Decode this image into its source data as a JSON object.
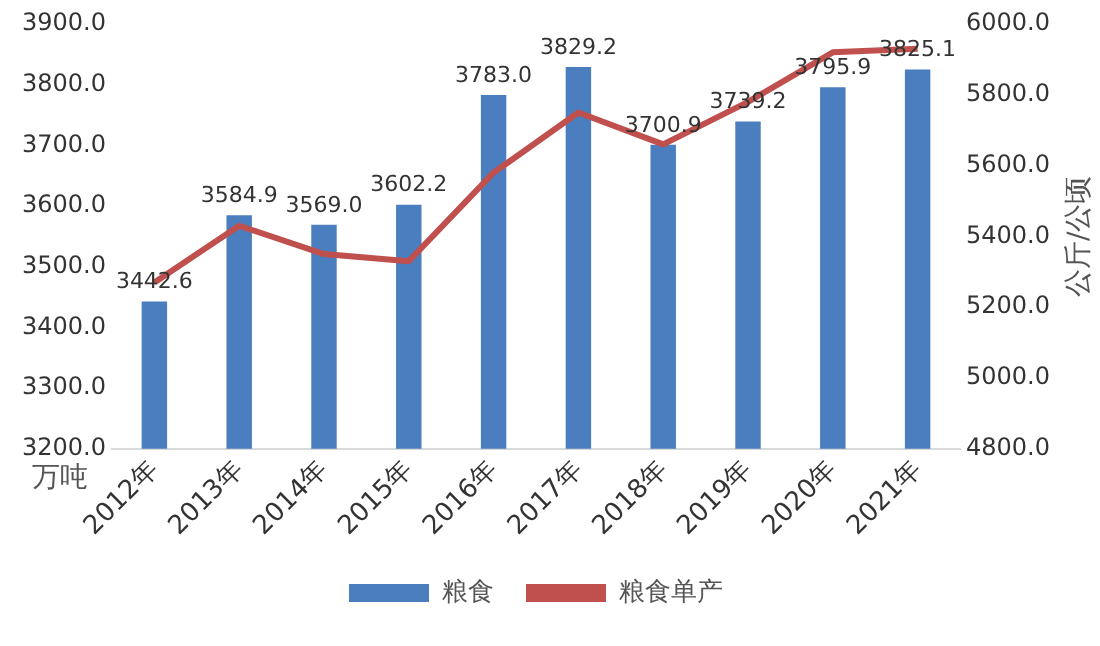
{
  "chart_data": {
    "type": "bar",
    "categories": [
      "2012年",
      "2013年",
      "2014年",
      "2015年",
      "2016年",
      "2017年",
      "2018年",
      "2019年",
      "2020年",
      "2021年"
    ],
    "series": [
      {
        "name": "粮食",
        "color": "#4a7ebf",
        "values": [
          3442.6,
          3584.9,
          3569.0,
          3602.2,
          3783.0,
          3829.2,
          3700.9,
          3739.2,
          3795.9,
          3825.1
        ],
        "value_labels": [
          "3442.6",
          "3584.9",
          "3569.0",
          "3602.2",
          "3783.0",
          "3829.2",
          "3700.9",
          "3739.2",
          "3795.9",
          "3825.1"
        ]
      },
      {
        "name": "粮食单产",
        "type": "line",
        "axis": "y2",
        "color": "#c0504d",
        "values": [
          5270,
          5430,
          5350,
          5330,
          5580,
          5750,
          5660,
          5780,
          5920,
          5930
        ]
      }
    ],
    "ylabel": "万吨",
    "y2label": "公斤/公顷",
    "ylim": [
      3200,
      3900
    ],
    "yticks": [
      {
        "value": 3200,
        "label": "3200.0"
      },
      {
        "value": 3300,
        "label": "3300.0"
      },
      {
        "value": 3400,
        "label": "3400.0"
      },
      {
        "value": 3500,
        "label": "3500.0"
      },
      {
        "value": 3600,
        "label": "3600.0"
      },
      {
        "value": 3700,
        "label": "3700.0"
      },
      {
        "value": 3800,
        "label": "3800.0"
      },
      {
        "value": 3900,
        "label": "3900.0"
      }
    ],
    "y2lim": [
      4800,
      6000
    ],
    "y2ticks": [
      {
        "value": 4800,
        "label": "4800.0"
      },
      {
        "value": 5000,
        "label": "5000.0"
      },
      {
        "value": 5200,
        "label": "5200.0"
      },
      {
        "value": 5400,
        "label": "5400.0"
      },
      {
        "value": 5600,
        "label": "5600.0"
      },
      {
        "value": 5800,
        "label": "5800.0"
      },
      {
        "value": 6000,
        "label": "6000.0"
      }
    ],
    "grid": false,
    "legend": "bottom",
    "marker": "none"
  }
}
